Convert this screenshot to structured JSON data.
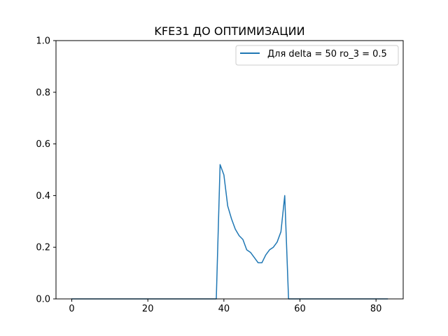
{
  "chart_data": {
    "type": "line",
    "title": "KFE31 ДО ОПТИМИЗАЦИИ",
    "xlabel": "",
    "ylabel": "",
    "xlim": [
      -4.15,
      87.15
    ],
    "ylim": [
      0,
      1.0
    ],
    "xticks": [
      0,
      20,
      40,
      60,
      80
    ],
    "yticks": [
      0.0,
      0.2,
      0.4,
      0.6,
      0.8,
      1.0
    ],
    "xtick_labels": [
      "0",
      "20",
      "40",
      "60",
      "80"
    ],
    "ytick_labels": [
      "0.0",
      "0.2",
      "0.4",
      "0.6",
      "0.8",
      "1.0"
    ],
    "grid": false,
    "legend_position": "upper right",
    "series": [
      {
        "name": "Для delta = 50 ro_3 = 0.5",
        "color": "#1f77b4",
        "x": [
          0,
          1,
          2,
          3,
          4,
          5,
          6,
          7,
          8,
          9,
          10,
          11,
          12,
          13,
          14,
          15,
          16,
          17,
          18,
          19,
          20,
          21,
          22,
          23,
          24,
          25,
          26,
          27,
          28,
          29,
          30,
          31,
          32,
          33,
          34,
          35,
          36,
          37,
          38,
          39,
          40,
          41,
          42,
          43,
          44,
          45,
          46,
          47,
          48,
          49,
          50,
          51,
          52,
          53,
          54,
          55,
          56,
          57,
          58,
          59,
          60,
          61,
          62,
          63,
          64,
          65,
          66,
          67,
          68,
          69,
          70,
          71,
          72,
          73,
          74,
          75,
          76,
          77,
          78,
          79,
          80,
          81,
          82,
          83
        ],
        "y": [
          0,
          0,
          0,
          0,
          0,
          0,
          0,
          0,
          0,
          0,
          0,
          0,
          0,
          0,
          0,
          0,
          0,
          0,
          0,
          0,
          0,
          0,
          0,
          0,
          0,
          0,
          0,
          0,
          0,
          0,
          0,
          0,
          0,
          0,
          0,
          0,
          0,
          0,
          0,
          0.52,
          0.48,
          0.36,
          0.31,
          0.27,
          0.245,
          0.23,
          0.19,
          0.18,
          0.16,
          0.14,
          0.14,
          0.17,
          0.19,
          0.2,
          0.22,
          0.26,
          0.4,
          0,
          0,
          0,
          0,
          0,
          0,
          0,
          0,
          0,
          0,
          0,
          0,
          0,
          0,
          0,
          0,
          0,
          0,
          0,
          0,
          0,
          0,
          0,
          0,
          0,
          0,
          0
        ]
      }
    ]
  }
}
